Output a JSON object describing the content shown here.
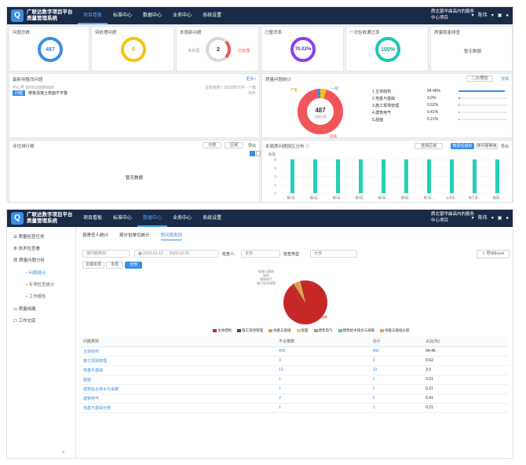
{
  "app": {
    "title_line1": "广联达数字项目平台",
    "title_line2": "质量管理系统",
    "project_line1": "质北银华曲高内的服务",
    "project_line2": "中心项目",
    "user": "陈伟"
  },
  "nav": {
    "items": [
      "项目看板",
      "标准中心",
      "数据中心",
      "业务中心",
      "系统设置"
    ]
  },
  "nav2": {
    "items": [
      "项目看板",
      "标准中心",
      "数据中心",
      "业务中心",
      "系统设置"
    ]
  },
  "dash": {
    "kpis": [
      {
        "title": "问题总数",
        "value": "487"
      },
      {
        "title": "待处理问题",
        "value": "0"
      },
      {
        "title": "本周新问题",
        "value": "2",
        "left": "未处理",
        "right": "已处理"
      },
      {
        "title": "已整改率",
        "value": "70.02%"
      },
      {
        "title": "一次验收通过率",
        "value": "100%"
      },
      {
        "title": "质量隐患排查",
        "value": "暂无数据"
      }
    ],
    "recent": {
      "title": "最新待整改问题",
      "more": "更多>",
      "meta_left": "中心号 9009188888888",
      "meta_right": "主体结构 / 2019年07月 · 一级",
      "badge": "问题",
      "desc": "楼板混凝土表面不平整",
      "author": "刘木"
    },
    "pie": {
      "title": "质量问题统计",
      "select": "二次/质检",
      "link": "详情",
      "center_value": "487",
      "center_label": "问题总数",
      "label_top": "一般",
      "label_left": "严重",
      "label_bottom": "轻微"
    },
    "top5": [
      {
        "name": "1.主体结构",
        "pct": "94.46%",
        "fill": 94.46
      },
      {
        "name": "2.地基与基础",
        "pct": "3.9%",
        "fill": 3.9
      },
      {
        "name": "3.施工现场管理",
        "pct": "0.62%",
        "fill": 0.62
      },
      {
        "name": "4.建筑电气",
        "pct": "0.41%",
        "fill": 0.41
      },
      {
        "name": "5.屋面",
        "pct": "0.21%",
        "fill": 0.21
      }
    ],
    "rank": {
      "title": "评优排行榜",
      "f1": "分部",
      "f2": "区域",
      "export": "导出",
      "empty": "暂无数据"
    },
    "bars": {
      "title": "本周质问题按区分布 ⓘ",
      "f1": "选择区域",
      "tab1": "按责任组织",
      "tab2": "按问题等级",
      "tab3": "导出",
      "ylabel": "数量",
      "yticks": [
        "8",
        "6",
        "4",
        "2",
        "0"
      ],
      "xlabels": [
        "楼1区...",
        "楼2区...",
        "楼3区...",
        "楼4区...",
        "楼5区...",
        "楼6区...",
        "楼7区...",
        "公共区...",
        "地下室...",
        "屋面..."
      ],
      "values": [
        8,
        8,
        8,
        8,
        8,
        8,
        8,
        8,
        8,
        8
      ]
    }
  },
  "stats": {
    "sidebar": [
      {
        "label": "质量检查任务"
      },
      {
        "label": "技术检查看"
      },
      {
        "label": "质量问题分析"
      },
      {
        "label": "问题统计"
      },
      {
        "label": "专项检查统计"
      },
      {
        "label": "工作报告"
      },
      {
        "label": "质量档案"
      },
      {
        "label": "工作交底"
      }
    ],
    "tabs": [
      "按责任人统计",
      "按分包单位统计",
      "按问题类别"
    ],
    "filters": {
      "type": "按问题类别",
      "date_from": "2020-01-12",
      "date_to": "2020-10-15",
      "inspector_label": "检查人:",
      "inspector": "全部",
      "check_type_label": "检查类型:",
      "check_type": "全部",
      "export": "导出Excel"
    },
    "range_tabs": [
      "近期本周",
      "本周",
      "全部"
    ],
    "chart_data": {
      "type": "pie",
      "categories": [
        "主体结构",
        "施工现场管理",
        "地基与基础",
        "屋面",
        "建筑电气",
        "建筑给水排水与采暖",
        "地基与基础分部"
      ],
      "values": [
        460,
        3,
        19,
        1,
        2,
        1,
        1
      ]
    },
    "pie_labels": {
      "top": "地基与基础",
      "l2": "屋面",
      "l3": "建筑电气",
      "l4": "施工现场管理",
      "bottom": "主体结构"
    },
    "legend_colors": [
      "#c62828",
      "#3a4a5c",
      "#e89a3c",
      "#f2c94c",
      "#7fb36b",
      "#4fc1b8",
      "#e8a04c"
    ],
    "table": {
      "headers": [
        "问题类别",
        "不合格数",
        "合计",
        "占比(%)"
      ],
      "rows": [
        [
          "主体结构",
          "460",
          "460",
          "94.46"
        ],
        [
          "施工现场管理",
          "3",
          "3",
          "0.62"
        ],
        [
          "地基与基础",
          "19",
          "19",
          "3.9"
        ],
        [
          "屋面",
          "1",
          "1",
          "0.21"
        ],
        [
          "建筑给水排水与采暖",
          "1",
          "1",
          "0.21"
        ],
        [
          "建筑电气",
          "2",
          "2",
          "0.41"
        ],
        [
          "地基与基础分部",
          "1",
          "1",
          "0.21"
        ]
      ]
    }
  }
}
